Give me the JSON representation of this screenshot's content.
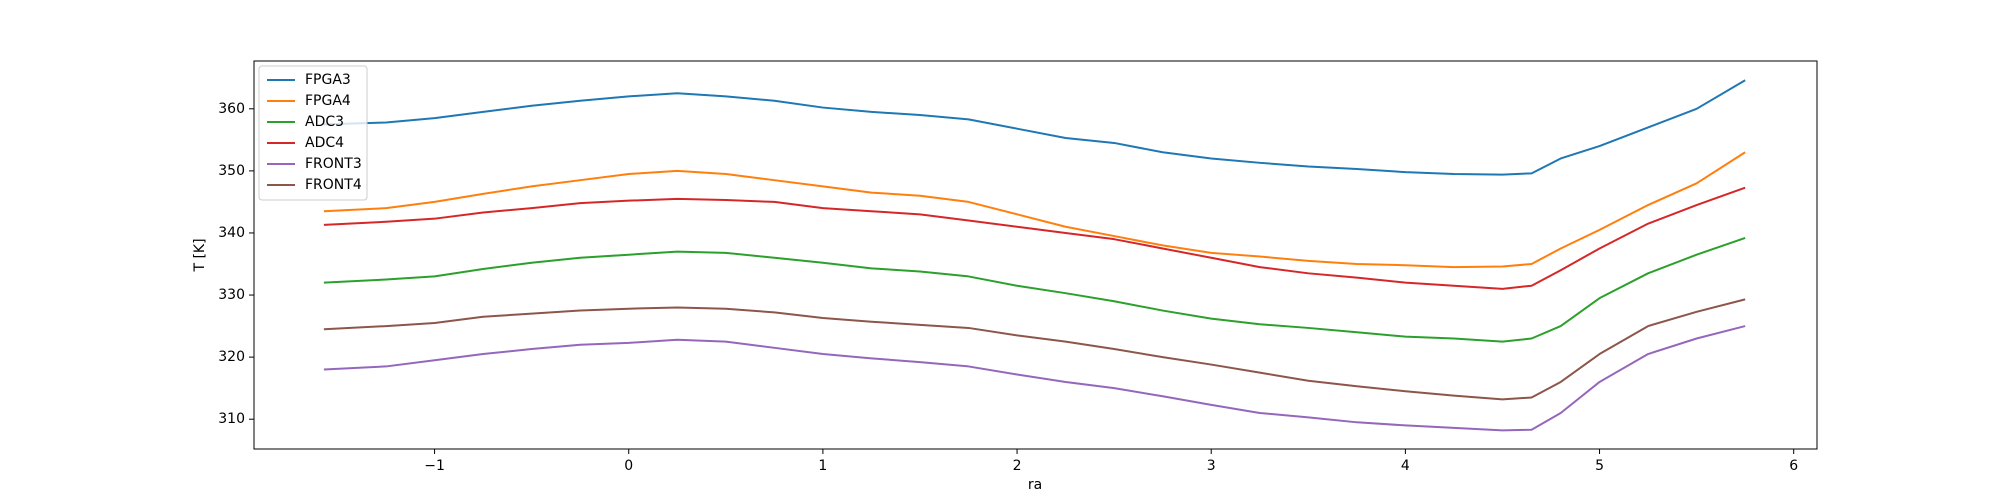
{
  "chart_data": {
    "type": "line",
    "xlabel": "ra",
    "ylabel": "T [K]",
    "x": [
      -1.57,
      -1.25,
      -1,
      -0.75,
      -0.5,
      -0.25,
      0,
      0.25,
      0.5,
      0.75,
      1,
      1.25,
      1.5,
      1.75,
      2,
      2.25,
      2.5,
      2.75,
      3,
      3.25,
      3.5,
      3.75,
      4,
      4.25,
      4.5,
      4.65,
      4.8,
      5,
      5.25,
      5.5,
      5.75
    ],
    "series": [
      {
        "name": "FPGA3",
        "color": "#1f77b4",
        "values": [
          357.5,
          357.8,
          358.5,
          359.5,
          360.5,
          361.3,
          362,
          362.5,
          362,
          361.3,
          360.2,
          359.5,
          359,
          358.3,
          356.8,
          355.3,
          354.5,
          353,
          352,
          351.3,
          350.7,
          350.3,
          349.8,
          349.5,
          349.4,
          349.6,
          352,
          354,
          357,
          360,
          364.6
        ]
      },
      {
        "name": "FPGA4",
        "color": "#ff7f0e",
        "values": [
          343.5,
          344,
          345,
          346.3,
          347.5,
          348.5,
          349.5,
          350,
          349.5,
          348.5,
          347.5,
          346.5,
          346,
          345,
          343,
          341,
          339.5,
          338,
          336.8,
          336.2,
          335.5,
          335,
          334.8,
          334.5,
          334.6,
          335,
          337.5,
          340.5,
          344.5,
          348,
          353
        ]
      },
      {
        "name": "ADC3",
        "color": "#2ca02c",
        "values": [
          332,
          332.5,
          333,
          334.2,
          335.2,
          336,
          336.5,
          337,
          336.8,
          336,
          335.2,
          334.3,
          333.8,
          333,
          331.5,
          330.3,
          329,
          327.5,
          326.2,
          325.3,
          324.7,
          324,
          323.3,
          323,
          322.5,
          323,
          325,
          329.5,
          333.5,
          336.5,
          339.2
        ]
      },
      {
        "name": "ADC4",
        "color": "#d62728",
        "values": [
          341.3,
          341.8,
          342.3,
          343.3,
          344,
          344.8,
          345.2,
          345.5,
          345.3,
          345,
          344,
          343.5,
          343,
          342,
          341,
          340,
          339,
          337.5,
          336,
          334.5,
          333.5,
          332.8,
          332,
          331.5,
          331,
          331.5,
          334,
          337.5,
          341.5,
          344.5,
          347.3
        ]
      },
      {
        "name": "FRONT3",
        "color": "#9467bd",
        "values": [
          318,
          318.5,
          319.5,
          320.5,
          321.3,
          322,
          322.3,
          322.8,
          322.5,
          321.5,
          320.5,
          319.8,
          319.2,
          318.5,
          317.2,
          316,
          315,
          313.7,
          312.3,
          311,
          310.3,
          309.5,
          309,
          308.6,
          308.2,
          308.3,
          311,
          316,
          320.5,
          323,
          325
        ]
      },
      {
        "name": "FRONT4",
        "color": "#8c564b",
        "values": [
          324.5,
          325,
          325.5,
          326.5,
          327,
          327.5,
          327.8,
          328,
          327.8,
          327.2,
          326.3,
          325.7,
          325.2,
          324.7,
          323.5,
          322.5,
          321.3,
          320,
          318.8,
          317.5,
          316.2,
          315.3,
          314.5,
          313.8,
          313.2,
          313.5,
          316,
          320.5,
          325,
          327.3,
          329.3
        ]
      }
    ],
    "xlim": [
      -1.93,
      6.12
    ],
    "xticks": [
      {
        "value": -1,
        "label": "−1"
      },
      0,
      1,
      2,
      3,
      4,
      5,
      6
    ],
    "ylim": [
      305.2,
      367.7
    ],
    "yticks": [
      310,
      320,
      330,
      340,
      350,
      360
    ],
    "legend": "upper left"
  }
}
